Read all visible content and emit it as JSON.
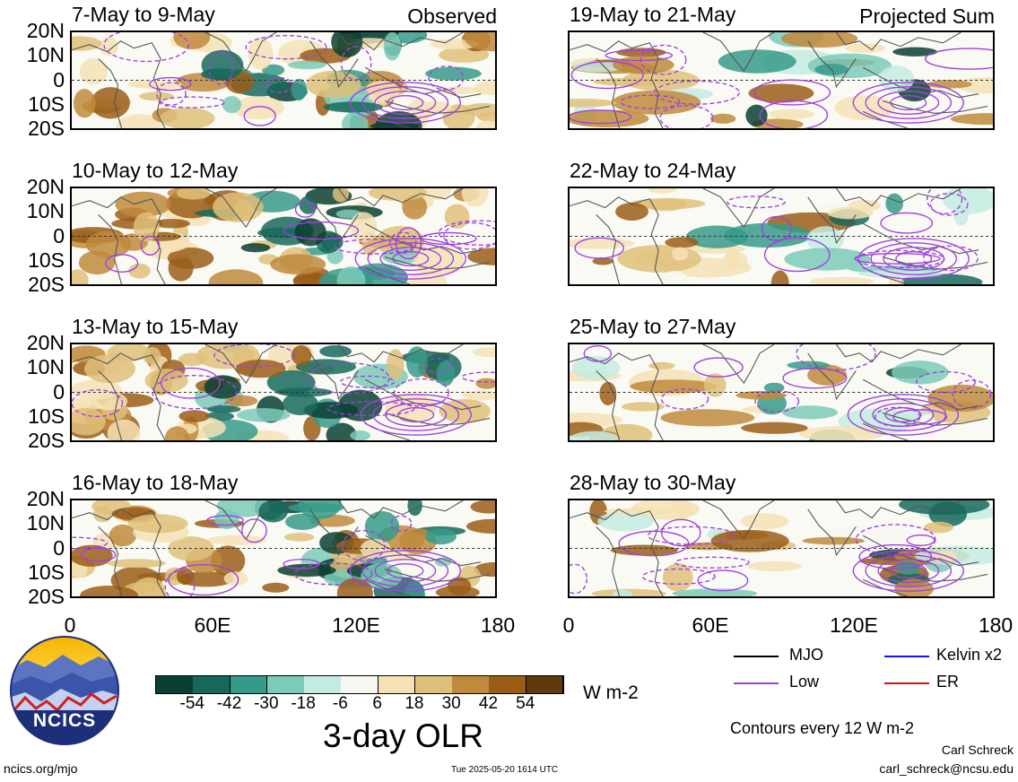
{
  "panels": [
    {
      "title": "7-May to 9-May",
      "label": "Observed"
    },
    {
      "title": "10-May to 12-May",
      "label": ""
    },
    {
      "title": "13-May to 15-May",
      "label": ""
    },
    {
      "title": "16-May to 18-May",
      "label": ""
    },
    {
      "title": "19-May to 21-May",
      "label": "Projected Sum"
    },
    {
      "title": "22-May to 24-May",
      "label": ""
    },
    {
      "title": "25-May to 27-May",
      "label": ""
    },
    {
      "title": "28-May to 30-May",
      "label": ""
    }
  ],
  "lat_labels": [
    "20N",
    "10N",
    "0",
    "10S",
    "20S"
  ],
  "lon_labels": [
    "0",
    "60E",
    "120E",
    "180"
  ],
  "colorbar": {
    "ticks": [
      "-54",
      "-42",
      "-30",
      "-18",
      "-6",
      "6",
      "18",
      "30",
      "42",
      "54"
    ],
    "colors": [
      "#0b3f33",
      "#17685c",
      "#369a8a",
      "#7ccab9",
      "#c4ebe1",
      "#f7f7f2",
      "#f4e2b5",
      "#dfc07a",
      "#c08a3c",
      "#9a5d18",
      "#5e3a0e"
    ],
    "units": "W m-2",
    "title": "3-day OLR"
  },
  "line_legend": {
    "items": [
      {
        "label": "MJO",
        "color": "#000000"
      },
      {
        "label": "Kelvin x2",
        "color": "#1010ff"
      },
      {
        "label": "Low",
        "color": "#a040e0"
      },
      {
        "label": "ER",
        "color": "#e01010"
      }
    ],
    "contour_note": "Contours every 12 W m-2"
  },
  "logo": {
    "text": "NCICS"
  },
  "footer": {
    "left": "ncics.org/mjo",
    "center": "Tue 2025-05-20 1614 UTC",
    "author": "Carl Schreck",
    "email": "carl_schreck@ncsu.edu"
  }
}
